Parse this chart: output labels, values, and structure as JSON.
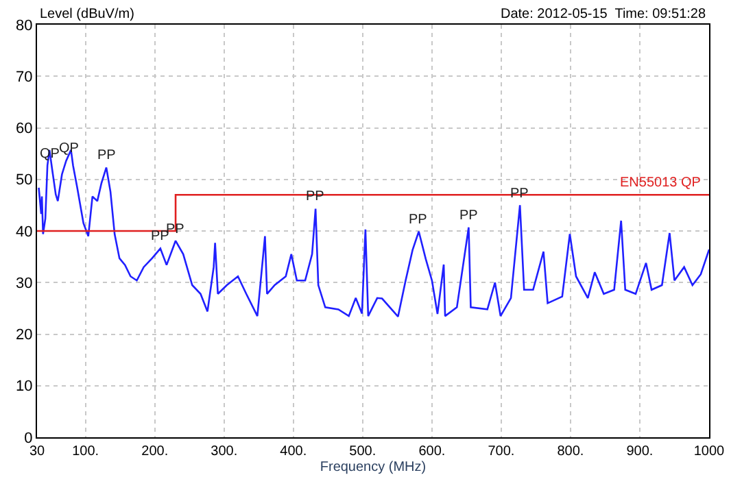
{
  "chart_data": {
    "type": "line",
    "xlabel": "Frequency (MHz)",
    "ylabel": "Level (dBuV/m)",
    "xlim": [
      30,
      1000
    ],
    "ylim": [
      0,
      80
    ],
    "xticks": [
      30,
      {
        "value": 100,
        "label": "100."
      },
      {
        "value": 200,
        "label": "200."
      },
      {
        "value": 300,
        "label": "300."
      },
      {
        "value": 400,
        "label": "400."
      },
      {
        "value": 500,
        "label": "500."
      },
      {
        "value": 600,
        "label": "600."
      },
      {
        "value": 700,
        "label": "700."
      },
      {
        "value": 800,
        "label": "800."
      },
      {
        "value": 900,
        "label": "900."
      },
      1000
    ],
    "yticks": [
      0,
      10,
      20,
      30,
      40,
      50,
      60,
      70,
      80
    ],
    "grid": true,
    "legend": false,
    "marker": "none",
    "line_style": "solid",
    "series": [
      {
        "color": "#2020ff",
        "x": [
          32.5,
          36,
          37,
          38.7,
          42,
          45,
          48,
          52,
          57,
          60,
          66,
          72,
          79,
          82,
          88,
          97,
          104,
          110,
          117,
          123,
          130,
          136,
          142,
          149,
          157,
          165,
          174,
          184,
          196,
          208,
          217,
          230,
          241,
          254,
          266,
          276,
          285,
          287,
          291,
          304,
          320,
          332,
          348,
          359,
          362,
          373,
          389,
          397,
          405,
          417,
          427,
          432,
          436,
          446,
          465,
          480,
          490,
          499,
          504,
          508,
          521,
          528,
          551,
          562,
          572,
          581,
          591,
          600,
          608,
          617,
          619,
          636,
          653,
          656,
          680,
          691,
          699,
          714,
          727,
          733,
          746,
          761,
          767,
          788,
          799,
          808,
          825,
          835,
          848,
          863,
          873,
          879,
          894,
          909,
          917,
          932,
          943,
          950,
          964,
          976,
          988,
          1000
        ],
        "values": [
          48.4,
          43.3,
          46.7,
          39.4,
          42.4,
          52.7,
          55.7,
          51.8,
          47.1,
          45.8,
          51,
          53.6,
          55.7,
          52.7,
          48.4,
          41.5,
          39,
          46.7,
          45.8,
          49.3,
          52.3,
          47.6,
          39.4,
          34.7,
          33.4,
          31.2,
          30.4,
          33,
          34.7,
          36.6,
          33.4,
          38.1,
          35.5,
          29.5,
          27.8,
          24.4,
          33,
          37.7,
          27.8,
          29.5,
          31.2,
          27.8,
          23.5,
          39,
          27.8,
          29.5,
          31.2,
          35.5,
          30.4,
          30.4,
          35.5,
          44.3,
          29.5,
          25.2,
          24.8,
          23.5,
          27,
          24,
          40.3,
          23.5,
          27,
          26.9,
          23.4,
          30.4,
          36.3,
          39.9,
          34.6,
          30.4,
          23.9,
          33.5,
          23.5,
          25.2,
          40.7,
          25.2,
          24.8,
          30,
          23.5,
          27,
          45,
          28.6,
          28.6,
          36,
          26,
          27.3,
          39.4,
          31.2,
          27,
          32,
          27.8,
          28.6,
          42,
          28.6,
          27.8,
          33.8,
          28.6,
          29.5,
          39.6,
          30.4,
          33,
          29.5,
          31.6,
          36.4
        ]
      },
      {
        "name": "EN55013 QP",
        "color": "#e02020",
        "x": [
          30,
          230,
          230,
          1000
        ],
        "values": [
          40,
          40,
          47,
          47
        ]
      }
    ],
    "annotations": [
      "Date: 2012-05-15  Time: 09:51:28",
      {
        "text": "QP",
        "x": 48,
        "y": 52.7
      },
      {
        "text": "QP",
        "x": 76,
        "y": 53.6
      },
      {
        "text": "PP",
        "x": 130,
        "y": 52.3
      },
      {
        "text": "PP",
        "x": 208,
        "y": 36.6
      },
      {
        "text": "PP",
        "x": 230,
        "y": 38.1
      },
      {
        "text": "PP",
        "x": 432,
        "y": 44.3
      },
      {
        "text": "PP",
        "x": 581,
        "y": 39.9
      },
      {
        "text": "PP",
        "x": 653,
        "y": 40.7
      },
      {
        "text": "PP",
        "x": 727,
        "y": 45
      }
    ]
  }
}
